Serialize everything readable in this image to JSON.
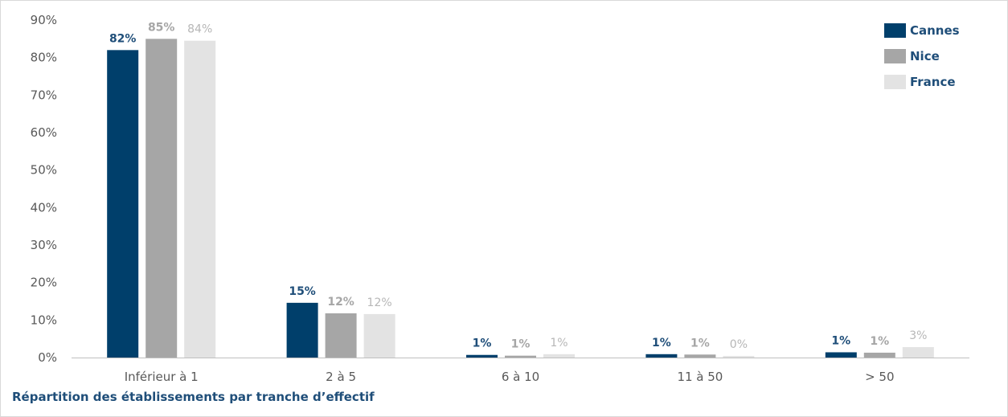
{
  "caption": "Répartition des établissements par tranche d’effectif",
  "chart_data": {
    "type": "bar",
    "title": "",
    "xlabel": "",
    "ylabel": "",
    "ylim": [
      0,
      90
    ],
    "y_ticks": [
      0,
      10,
      20,
      30,
      40,
      50,
      60,
      70,
      80,
      90
    ],
    "y_tick_labels": [
      "0%",
      "10%",
      "20%",
      "30%",
      "40%",
      "50%",
      "60%",
      "70%",
      "80%",
      "90%"
    ],
    "categories": [
      "Inférieur à 1",
      "2 à 5",
      "6 à 10",
      "11 à 50",
      "> 50"
    ],
    "series": [
      {
        "name": "Cannes",
        "color": "#003f6b",
        "label_color": "#1f4e79",
        "label_bold": true,
        "values": [
          82,
          14.6,
          0.7,
          0.9,
          1.4
        ],
        "labels": [
          "82%",
          "15%",
          "1%",
          "1%",
          "1%"
        ]
      },
      {
        "name": "Nice",
        "color": "#a6a6a6",
        "label_color": "#a6a6a6",
        "label_bold": true,
        "values": [
          85,
          11.8,
          0.5,
          0.8,
          1.3
        ],
        "labels": [
          "85%",
          "12%",
          "1%",
          "1%",
          "1%"
        ]
      },
      {
        "name": "France",
        "color": "#e3e3e3",
        "label_color": "#b7b7b7",
        "label_bold": false,
        "values": [
          84.5,
          11.6,
          0.9,
          0.4,
          2.8
        ],
        "labels": [
          "84%",
          "12%",
          "1%",
          "0%",
          "3%"
        ]
      }
    ],
    "legend_position": "top-right",
    "grid": false
  }
}
